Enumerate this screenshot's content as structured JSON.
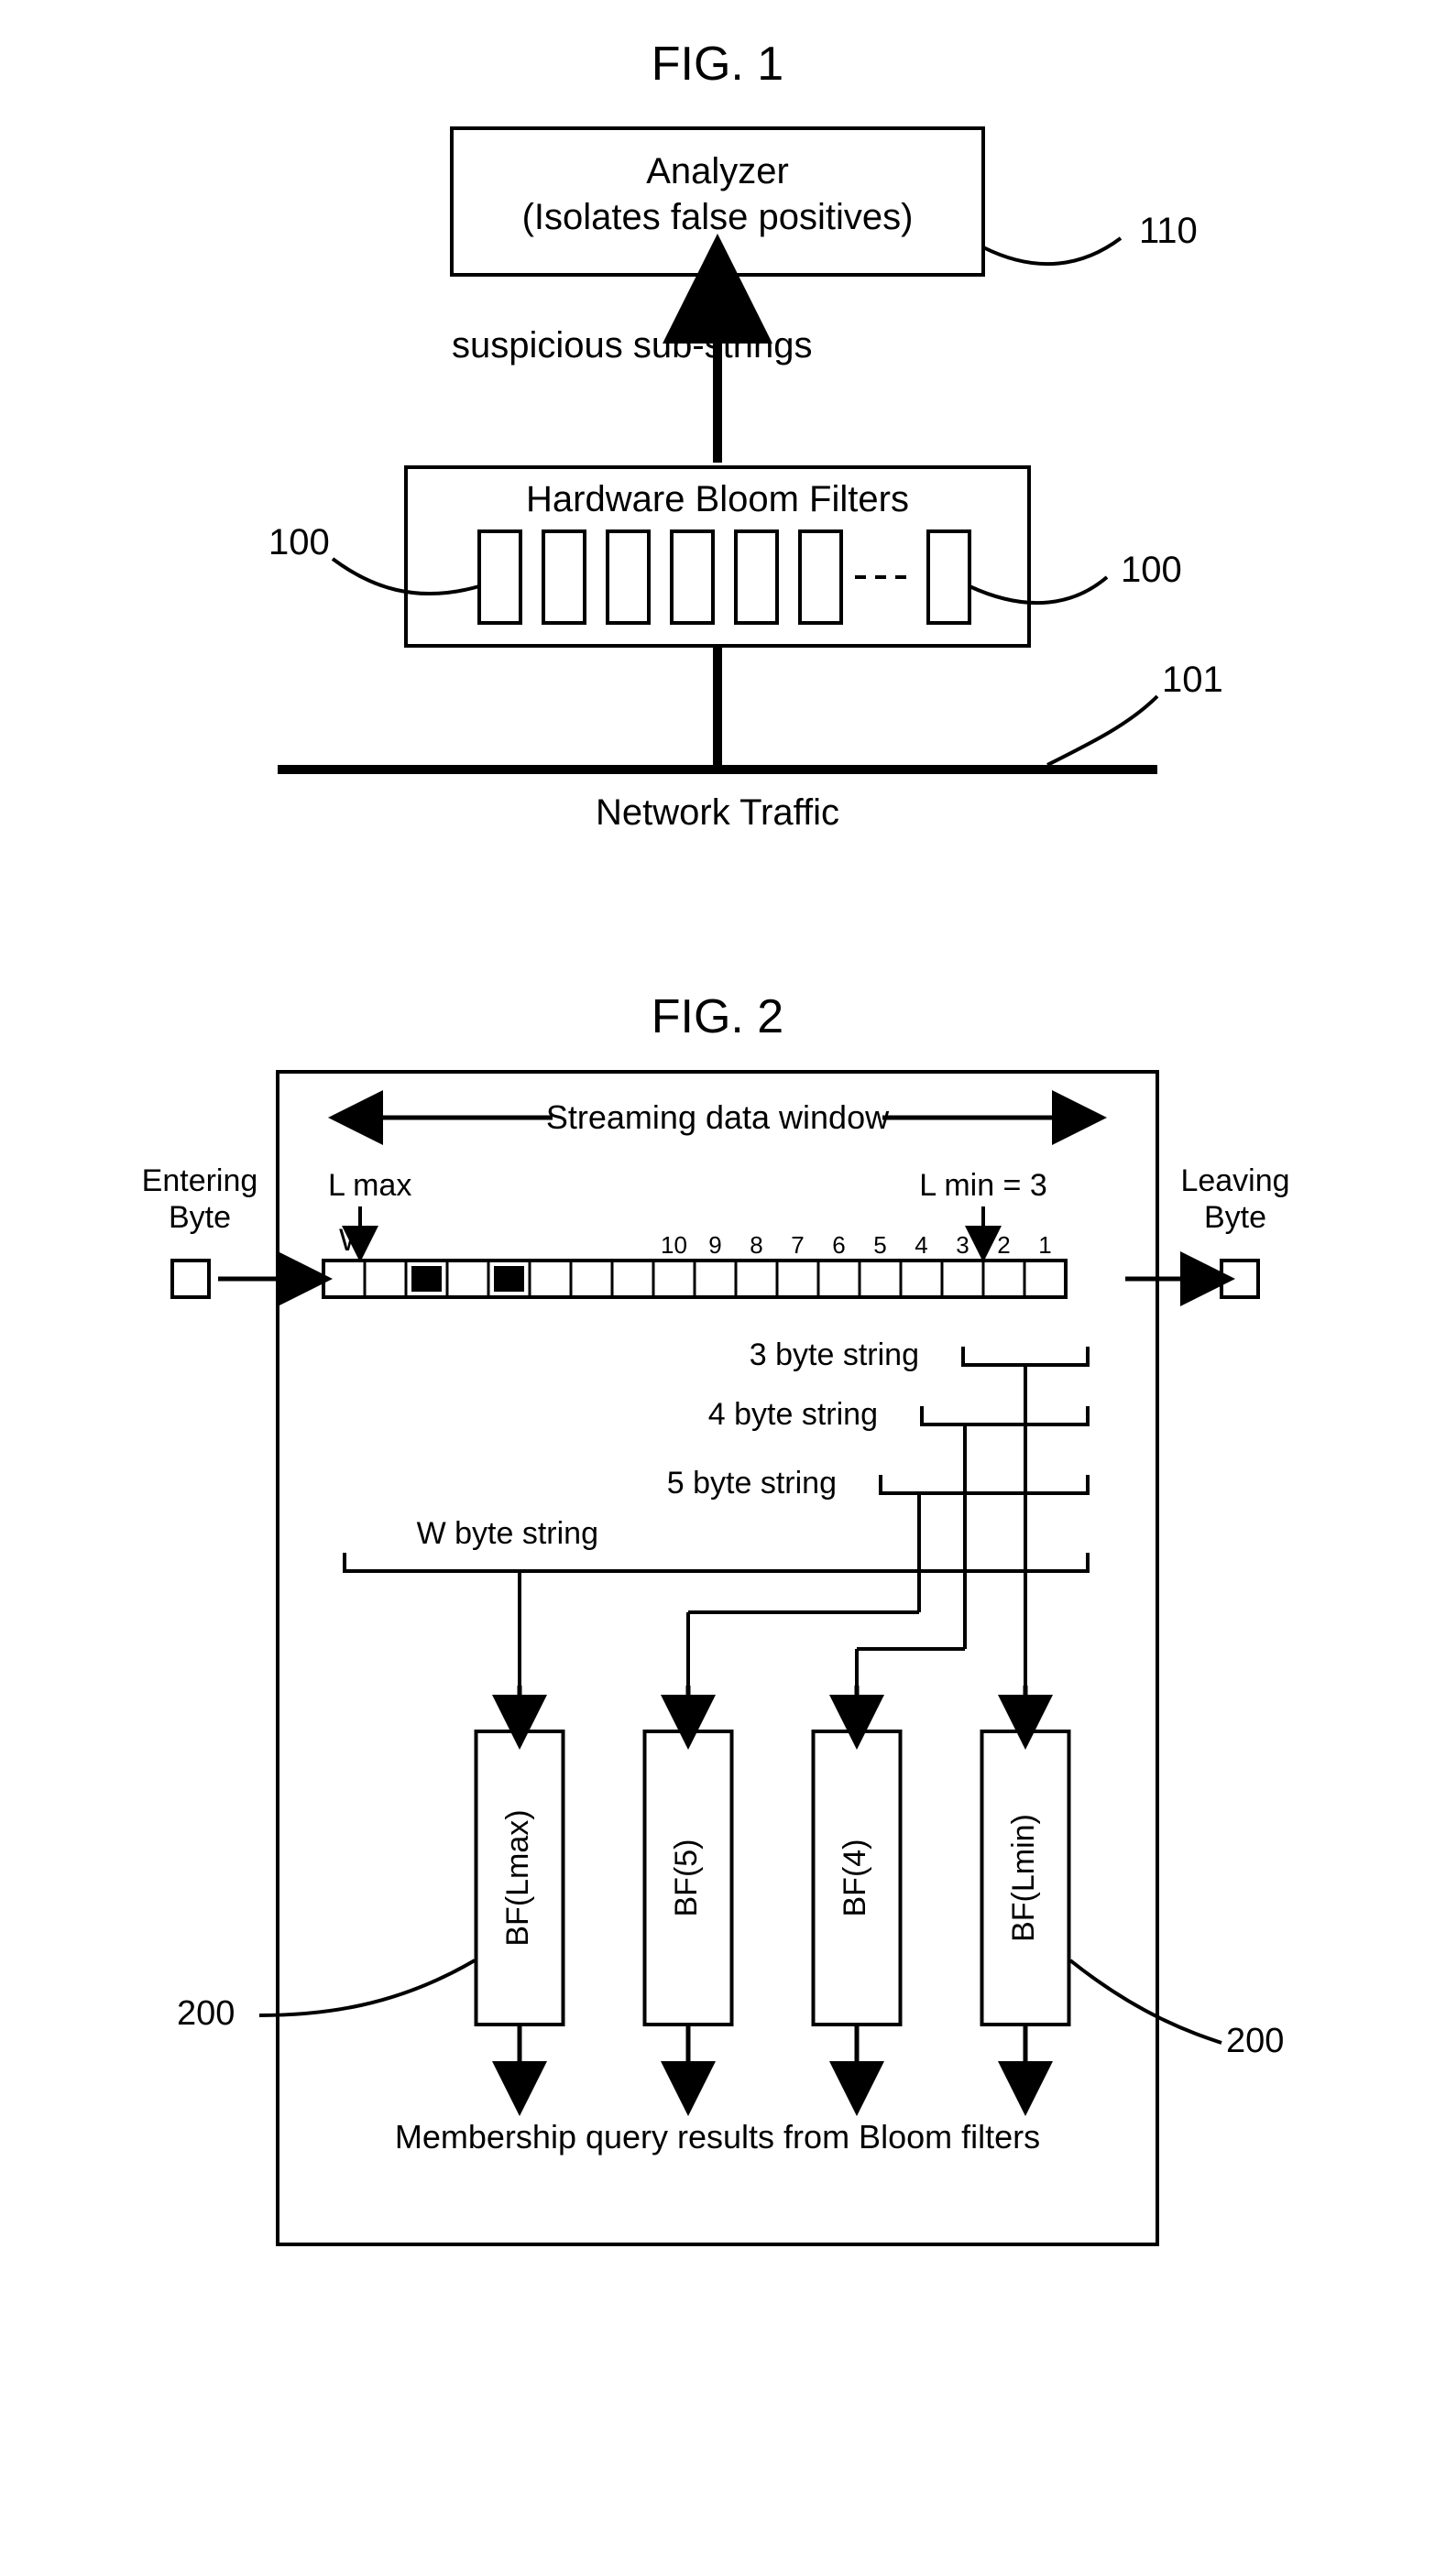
{
  "fig1": {
    "title": "FIG. 1",
    "analyzer": {
      "line1": "Analyzer",
      "line2": "(Isolates false positives)",
      "ref": "110"
    },
    "bloom": {
      "label": "Hardware Bloom Filters",
      "ref_left": "100",
      "ref_right": "100"
    },
    "arrow_label": "suspicious sub-strings",
    "traffic_label": "Network Traffic",
    "traffic_ref": "101",
    "colors": {
      "stroke": "#000000",
      "bg": "#ffffff"
    }
  },
  "fig2": {
    "title": "FIG. 2",
    "window_label": "Streaming data window",
    "entering": "Entering\nByte",
    "leaving": "Leaving\nByte",
    "lmax_label": "L max",
    "lmin_label": "L min = 3",
    "w_label": "W",
    "byte_numbers": [
      "10",
      "9",
      "8",
      "7",
      "6",
      "5",
      "4",
      "3",
      "2",
      "1"
    ],
    "string_labels": {
      "s3": "3 byte string",
      "s4": "4 byte string",
      "s5": "5 byte string",
      "sw": "W byte string"
    },
    "bf_labels": [
      "BF(Lmax)",
      "BF(5)",
      "BF(4)",
      "BF(Lmin)"
    ],
    "bf_ref": "200",
    "bottom_label": "Membership query results from Bloom filters",
    "colors": {
      "stroke": "#000000",
      "bg": "#ffffff",
      "fill_black": "#000000"
    }
  }
}
